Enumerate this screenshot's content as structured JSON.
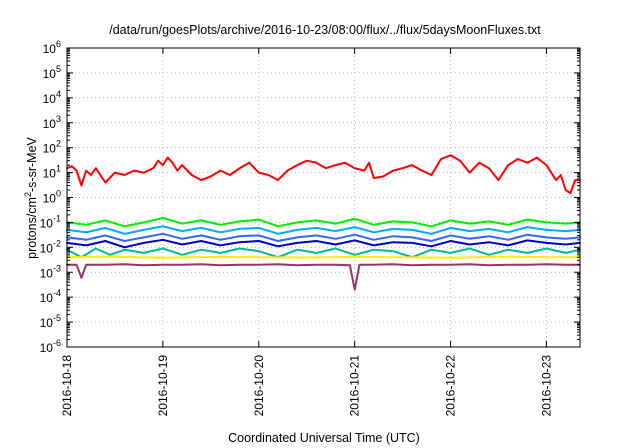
{
  "chart_data": {
    "type": "line",
    "title": "/data/run/goesPlots/archive/2016-10-23/08:00/flux/../flux/5daysMoonFluxes.txt",
    "xlabel": "Coordinated Universal Time (UTC)",
    "ylabel": {
      "prefix": "protons/cm",
      "sup": "2",
      "suffix": "-s-sr-MeV"
    },
    "y_scale": "log",
    "ylim_exponent": [
      -6,
      6
    ],
    "y_tick_exponents": [
      -6,
      -5,
      -4,
      -3,
      -2,
      -1,
      0,
      1,
      2,
      3,
      4,
      5,
      6
    ],
    "y_tick_base": "10",
    "xlim_days": [
      0,
      5.35
    ],
    "x_tick_labels": [
      "2016-10-18",
      "2016-10-19",
      "2016-10-20",
      "2016-10-21",
      "2016-10-22",
      "2016-10-23"
    ],
    "grid": true,
    "legend": "none",
    "series": [
      {
        "color": "#ff0000",
        "x": [
          0,
          0.05,
          0.1,
          0.15,
          0.2,
          0.25,
          0.3,
          0.4,
          0.5,
          0.6,
          0.7,
          0.8,
          0.9,
          0.95,
          1.0,
          1.05,
          1.1,
          1.15,
          1.2,
          1.3,
          1.4,
          1.5,
          1.6,
          1.7,
          1.8,
          1.9,
          2.0,
          2.1,
          2.2,
          2.3,
          2.4,
          2.5,
          2.6,
          2.7,
          2.8,
          2.9,
          3.0,
          3.1,
          3.15,
          3.2,
          3.3,
          3.4,
          3.5,
          3.6,
          3.7,
          3.8,
          3.9,
          4.0,
          4.1,
          4.2,
          4.3,
          4.4,
          4.5,
          4.6,
          4.7,
          4.8,
          4.9,
          5.0,
          5.05,
          5.1,
          5.15,
          5.2,
          5.25,
          5.3,
          5.35
        ],
        "y": [
          15,
          18,
          12,
          3,
          12,
          8,
          15,
          4,
          10,
          8,
          12,
          10,
          15,
          30,
          20,
          40,
          25,
          12,
          20,
          8,
          5,
          7,
          12,
          8,
          15,
          25,
          10,
          8,
          5,
          12,
          20,
          30,
          25,
          15,
          20,
          25,
          15,
          12,
          25,
          6,
          7,
          12,
          15,
          20,
          12,
          8,
          35,
          50,
          30,
          10,
          25,
          15,
          5,
          20,
          35,
          25,
          40,
          20,
          10,
          5,
          8,
          2,
          1.5,
          5,
          5
        ]
      },
      {
        "color": "#00ee00",
        "x": [
          0,
          0.2,
          0.4,
          0.6,
          0.8,
          1.0,
          1.2,
          1.4,
          1.6,
          1.8,
          2.0,
          2.2,
          2.4,
          2.6,
          2.8,
          3.0,
          3.2,
          3.4,
          3.6,
          3.8,
          4.0,
          4.2,
          4.4,
          4.6,
          4.8,
          5.0,
          5.2,
          5.35
        ],
        "y": [
          0.1,
          0.08,
          0.12,
          0.07,
          0.1,
          0.15,
          0.09,
          0.12,
          0.08,
          0.11,
          0.13,
          0.07,
          0.1,
          0.12,
          0.09,
          0.14,
          0.08,
          0.11,
          0.1,
          0.07,
          0.12,
          0.09,
          0.11,
          0.08,
          0.13,
          0.1,
          0.09,
          0.1
        ]
      },
      {
        "color": "#00aaff",
        "x": [
          0,
          0.2,
          0.4,
          0.6,
          0.8,
          1.0,
          1.2,
          1.4,
          1.6,
          1.8,
          2.0,
          2.2,
          2.4,
          2.6,
          2.8,
          3.0,
          3.2,
          3.4,
          3.6,
          3.8,
          4.0,
          4.2,
          4.4,
          4.6,
          4.8,
          5.0,
          5.2,
          5.35
        ],
        "y": [
          0.05,
          0.04,
          0.06,
          0.035,
          0.05,
          0.07,
          0.045,
          0.06,
          0.04,
          0.055,
          0.06,
          0.035,
          0.05,
          0.06,
          0.045,
          0.065,
          0.04,
          0.055,
          0.05,
          0.035,
          0.06,
          0.045,
          0.055,
          0.04,
          0.065,
          0.05,
          0.045,
          0.05
        ]
      },
      {
        "color": "#3366ff",
        "x": [
          0,
          0.2,
          0.4,
          0.6,
          0.8,
          1.0,
          1.2,
          1.4,
          1.6,
          1.8,
          2.0,
          2.2,
          2.4,
          2.6,
          2.8,
          3.0,
          3.2,
          3.4,
          3.6,
          3.8,
          4.0,
          4.2,
          4.4,
          4.6,
          4.8,
          5.0,
          5.2,
          5.35
        ],
        "y": [
          0.025,
          0.02,
          0.03,
          0.018,
          0.025,
          0.035,
          0.022,
          0.03,
          0.02,
          0.028,
          0.03,
          0.018,
          0.025,
          0.03,
          0.022,
          0.032,
          0.02,
          0.028,
          0.025,
          0.018,
          0.03,
          0.022,
          0.028,
          0.02,
          0.032,
          0.025,
          0.022,
          0.025
        ]
      },
      {
        "color": "#0000cc",
        "x": [
          0,
          0.2,
          0.4,
          0.6,
          0.8,
          1.0,
          1.2,
          1.4,
          1.6,
          1.8,
          2.0,
          2.2,
          2.4,
          2.6,
          2.8,
          3.0,
          3.2,
          3.4,
          3.6,
          3.8,
          4.0,
          4.2,
          4.4,
          4.6,
          4.8,
          5.0,
          5.2,
          5.35
        ],
        "y": [
          0.015,
          0.012,
          0.018,
          0.01,
          0.015,
          0.02,
          0.013,
          0.018,
          0.012,
          0.016,
          0.018,
          0.011,
          0.015,
          0.018,
          0.013,
          0.019,
          0.012,
          0.016,
          0.015,
          0.011,
          0.018,
          0.013,
          0.016,
          0.012,
          0.019,
          0.015,
          0.013,
          0.015
        ]
      },
      {
        "color": "#00bb99",
        "x": [
          0,
          0.15,
          0.3,
          0.45,
          0.6,
          0.8,
          1.0,
          1.2,
          1.4,
          1.6,
          1.8,
          2.0,
          2.2,
          2.4,
          2.6,
          2.8,
          3.0,
          3.2,
          3.4,
          3.6,
          3.8,
          4.0,
          4.2,
          4.4,
          4.6,
          4.8,
          5.0,
          5.2,
          5.35
        ],
        "y": [
          0.008,
          0.004,
          0.009,
          0.005,
          0.008,
          0.006,
          0.009,
          0.005,
          0.008,
          0.006,
          0.009,
          0.007,
          0.004,
          0.008,
          0.006,
          0.009,
          0.005,
          0.008,
          0.007,
          0.004,
          0.008,
          0.006,
          0.009,
          0.005,
          0.008,
          0.006,
          0.009,
          0.006,
          0.008
        ]
      },
      {
        "color": "#ffee00",
        "x": [
          0,
          0.5,
          1.0,
          1.5,
          2.0,
          2.5,
          3.0,
          3.5,
          4.0,
          4.5,
          5.0,
          5.35
        ],
        "y": [
          0.004,
          0.0042,
          0.0038,
          0.0041,
          0.004,
          0.0039,
          0.0041,
          0.004,
          0.0038,
          0.0042,
          0.004,
          0.004
        ]
      },
      {
        "color": "#993366",
        "x": [
          0,
          0.1,
          0.15,
          0.2,
          0.4,
          0.6,
          0.8,
          1.0,
          1.2,
          1.4,
          1.6,
          1.8,
          2.0,
          2.2,
          2.4,
          2.6,
          2.8,
          2.95,
          3.0,
          3.05,
          3.2,
          3.4,
          3.6,
          3.8,
          4.0,
          4.2,
          4.4,
          4.6,
          4.8,
          5.0,
          5.2,
          5.35
        ],
        "y": [
          0.002,
          0.002,
          0.0006,
          0.002,
          0.002,
          0.0021,
          0.0019,
          0.002,
          0.002,
          0.0021,
          0.0019,
          0.002,
          0.002,
          0.0021,
          0.0019,
          0.002,
          0.002,
          0.0019,
          0.0002,
          0.002,
          0.002,
          0.0021,
          0.0019,
          0.002,
          0.002,
          0.0021,
          0.0019,
          0.002,
          0.002,
          0.0021,
          0.002,
          0.002
        ]
      }
    ]
  }
}
